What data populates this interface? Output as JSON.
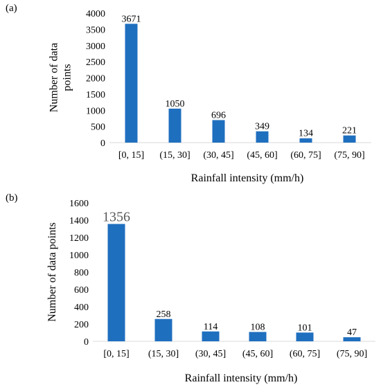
{
  "chart_data": [
    {
      "panel_label": "(a)",
      "type": "bar",
      "categories": [
        "[0, 15]",
        "(15, 30]",
        "(30, 45]",
        "(45, 60]",
        "(60, 75]",
        "(75, 90]"
      ],
      "values": [
        3671,
        1050,
        696,
        349,
        134,
        221
      ],
      "data_labels": [
        "3671",
        "1050",
        "696",
        "349",
        "134",
        "221"
      ],
      "xlabel": "Rainfall intensity (mm/h)",
      "ylabel_lines": [
        "Number of data",
        "points"
      ],
      "ylim": [
        0,
        4000
      ],
      "yticks": [
        0,
        500,
        1000,
        1500,
        2000,
        2500,
        3000,
        3500,
        4000
      ],
      "grid": false,
      "bar_color": "#1F6FBF"
    },
    {
      "panel_label": "(b)",
      "type": "bar",
      "categories": [
        "[0, 15]",
        "(15, 30]",
        "(30, 45]",
        "(45, 60]",
        "(60, 75]",
        "(75, 90]"
      ],
      "values": [
        1356,
        258,
        114,
        108,
        101,
        47
      ],
      "data_labels": [
        "1356",
        "258",
        "114",
        "108",
        "101",
        "47"
      ],
      "xlabel": "Rainfall intensity (mm/h)",
      "ylabel_lines": [
        "Number of data points"
      ],
      "ylim": [
        0,
        1600
      ],
      "yticks": [
        0,
        200,
        400,
        600,
        800,
        1000,
        1200,
        1400,
        1600
      ],
      "grid": false,
      "bar_color": "#1F6FBF"
    }
  ]
}
